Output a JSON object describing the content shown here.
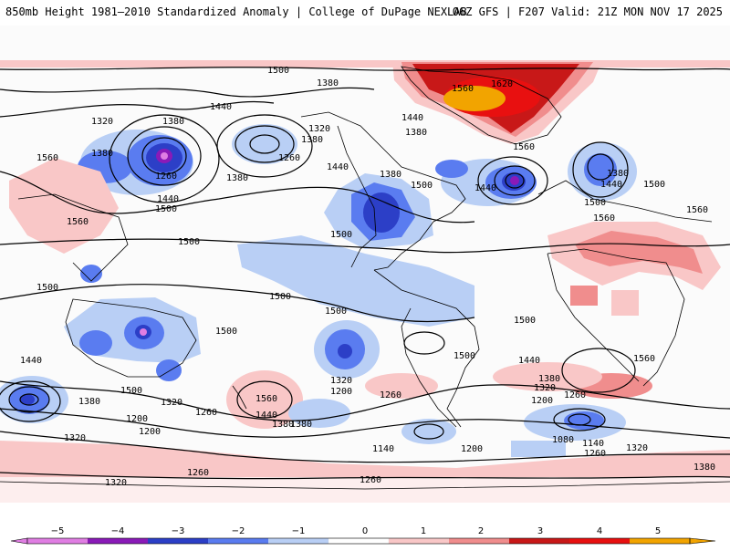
{
  "header": {
    "left_title": "850mb Height 1981–2010 Standardized Anomaly | College of DuPage NEXLAB",
    "right_title": "06Z GFS | F207 Valid: 21Z MON NOV 17 2025"
  },
  "colors": {
    "minus5": "#e07ee3",
    "minus4": "#8a1ab8",
    "minus3": "#2c3fc7",
    "minus2": "#5a7cf0",
    "minus1": "#b9cff5",
    "zero": "#ffffff",
    "plus1": "#f9c7c7",
    "plus2": "#f08d8d",
    "plus3": "#c81818",
    "plus4": "#e81010",
    "plus5": "#f2a400",
    "contour": "#000000",
    "coast": "#000000"
  },
  "contour_labels": [
    {
      "text": "1500"
    },
    {
      "text": "1380"
    },
    {
      "text": "1440"
    },
    {
      "text": "1320"
    },
    {
      "text": "1380"
    },
    {
      "text": "1560"
    },
    {
      "text": "1380"
    },
    {
      "text": "1260"
    },
    {
      "text": "1440"
    },
    {
      "text": "1500"
    },
    {
      "text": "1380"
    },
    {
      "text": "1260"
    },
    {
      "text": "1320"
    },
    {
      "text": "1380"
    },
    {
      "text": "1440"
    },
    {
      "text": "1380"
    },
    {
      "text": "1500"
    },
    {
      "text": "1440"
    },
    {
      "text": "1500"
    },
    {
      "text": "1560"
    },
    {
      "text": "1620"
    },
    {
      "text": "1440"
    },
    {
      "text": "1380"
    },
    {
      "text": "1560"
    },
    {
      "text": "1500"
    },
    {
      "text": "1440"
    },
    {
      "text": "1380"
    },
    {
      "text": "1500"
    },
    {
      "text": "1560"
    },
    {
      "text": "1560"
    },
    {
      "text": "1560"
    },
    {
      "text": "1500"
    },
    {
      "text": "1500"
    },
    {
      "text": "1500"
    },
    {
      "text": "1500"
    },
    {
      "text": "1500"
    },
    {
      "text": "1500"
    },
    {
      "text": "1500"
    },
    {
      "text": "1560"
    },
    {
      "text": "1440"
    },
    {
      "text": "1500"
    },
    {
      "text": "1380"
    },
    {
      "text": "1320"
    },
    {
      "text": "1200"
    },
    {
      "text": "1260"
    },
    {
      "text": "1440"
    },
    {
      "text": "1380"
    },
    {
      "text": "1560"
    },
    {
      "text": "1200"
    },
    {
      "text": "1320"
    },
    {
      "text": "1260"
    },
    {
      "text": "1200"
    },
    {
      "text": "1440"
    },
    {
      "text": "1380"
    },
    {
      "text": "1320"
    },
    {
      "text": "1200"
    },
    {
      "text": "1260"
    },
    {
      "text": "1080"
    },
    {
      "text": "1140"
    },
    {
      "text": "1140"
    },
    {
      "text": "1260"
    },
    {
      "text": "1200"
    },
    {
      "text": "1320"
    },
    {
      "text": "1380"
    },
    {
      "text": "1320"
    },
    {
      "text": "1260"
    },
    {
      "text": "1260"
    },
    {
      "text": "1320"
    },
    {
      "text": "1380"
    }
  ],
  "colorbar": {
    "ticks": [
      "−5",
      "−4",
      "−3",
      "−2",
      "−1",
      "0",
      "1",
      "2",
      "3",
      "4",
      "5"
    ]
  }
}
